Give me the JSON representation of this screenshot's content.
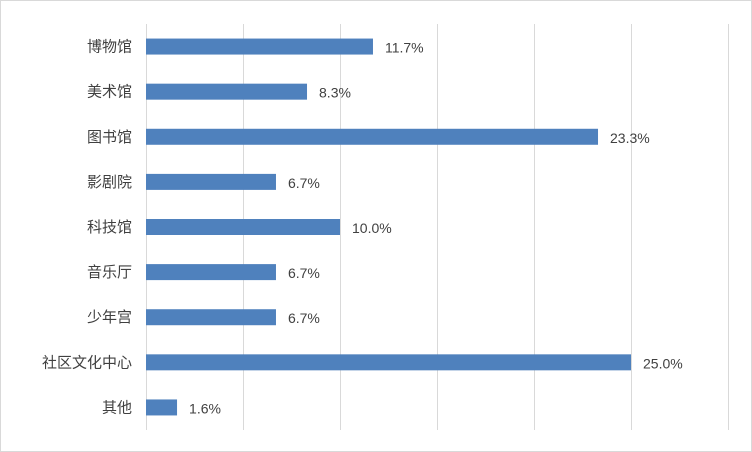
{
  "chart_data": {
    "type": "bar",
    "orientation": "horizontal",
    "title": "",
    "xlabel": "",
    "ylabel": "",
    "categories": [
      "博物馆",
      "美术馆",
      "图书馆",
      "影剧院",
      "科技馆",
      "音乐厅",
      "少年宫",
      "社区文化中心",
      "其他"
    ],
    "values": [
      11.7,
      8.3,
      23.3,
      6.7,
      10.0,
      6.7,
      6.7,
      25.0,
      1.6
    ],
    "data_labels": [
      "11.7%",
      "8.3%",
      "23.3%",
      "6.7%",
      "10.0%",
      "6.7%",
      "6.7%",
      "25.0%",
      "1.6%"
    ],
    "xlim": [
      0,
      30
    ],
    "grid_step": 5,
    "grid": true,
    "legend": "none",
    "bar_color": "#4f81bd"
  }
}
